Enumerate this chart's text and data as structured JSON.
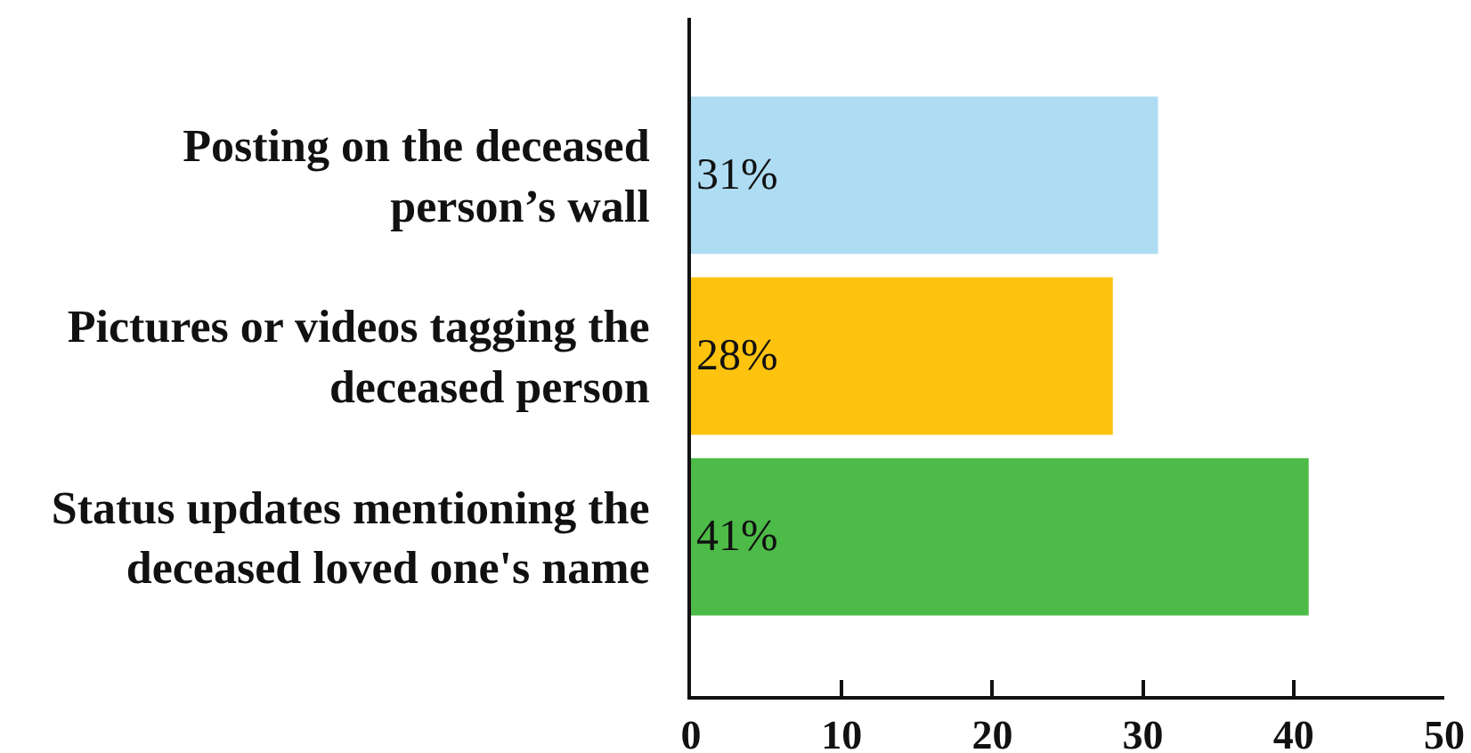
{
  "chart_data": {
    "type": "bar",
    "orientation": "horizontal",
    "categories": [
      "Posting on the deceased person’s wall",
      "Pictures or videos tagging the deceased person",
      "Status updates mentioning the deceased loved one's name"
    ],
    "values": [
      31,
      28,
      41
    ],
    "colors": [
      "#aedcf3",
      "#fdc30f",
      "#4dbb47"
    ],
    "value_labels": [
      "31%",
      "28%",
      "41%"
    ],
    "xlim": [
      0,
      50
    ],
    "xticks": [
      0,
      10,
      20,
      30,
      40,
      50
    ],
    "grid": false
  }
}
